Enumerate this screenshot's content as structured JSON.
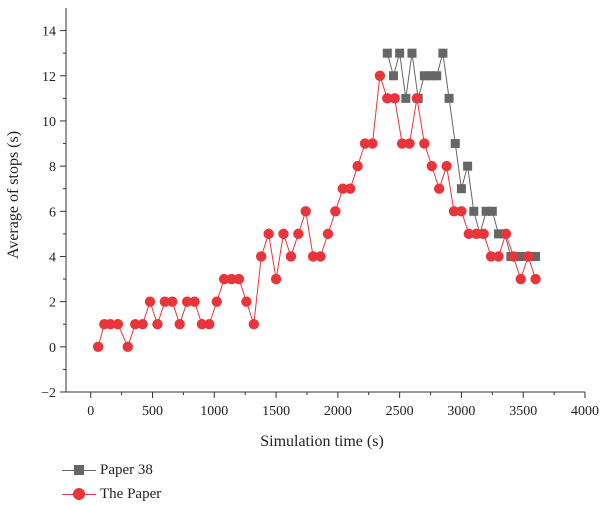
{
  "chart_data": {
    "type": "line",
    "xlabel": "Simulation time (s)",
    "ylabel": "Average of stops (s)",
    "xlim": [
      -200,
      4000
    ],
    "ylim": [
      -2,
      15
    ],
    "xticks": [
      0,
      500,
      1000,
      1500,
      2000,
      2500,
      3000,
      3500,
      4000
    ],
    "yticks": [
      -2,
      0,
      2,
      4,
      6,
      8,
      10,
      12,
      14
    ],
    "legend_position": "bottom-left",
    "series": [
      {
        "name": "Paper 38",
        "color": "#666666",
        "marker": "square",
        "x": [
          2400,
          2450,
          2500,
          2550,
          2600,
          2650,
          2700,
          2750,
          2800,
          2850,
          2900,
          2950,
          3000,
          3050,
          3100,
          3150,
          3200,
          3250,
          3300,
          3350,
          3400,
          3450,
          3500,
          3550,
          3600
        ],
        "y": [
          13,
          12,
          13,
          11,
          13,
          11,
          12,
          12,
          12,
          13,
          11,
          9,
          7,
          8,
          6,
          5,
          6,
          6,
          5,
          5,
          4,
          4,
          4,
          4,
          4
        ]
      },
      {
        "name": "The Paper",
        "color": "#e8353b",
        "marker": "circle",
        "x": [
          60,
          110,
          160,
          220,
          300,
          360,
          420,
          480,
          540,
          600,
          660,
          720,
          780,
          840,
          900,
          960,
          1020,
          1080,
          1140,
          1200,
          1260,
          1320,
          1380,
          1440,
          1500,
          1560,
          1620,
          1680,
          1740,
          1800,
          1860,
          1920,
          1980,
          2040,
          2100,
          2160,
          2220,
          2280,
          2340,
          2400,
          2460,
          2520,
          2580,
          2640,
          2700,
          2760,
          2820,
          2880,
          2940,
          3000,
          3060,
          3120,
          3180,
          3240,
          3300,
          3360,
          3420,
          3480,
          3540,
          3600
        ],
        "y": [
          0,
          1,
          1,
          1,
          0,
          1,
          1,
          2,
          1,
          2,
          2,
          1,
          2,
          2,
          1,
          1,
          2,
          3,
          3,
          3,
          2,
          1,
          4,
          5,
          3,
          5,
          4,
          5,
          6,
          4,
          4,
          5,
          6,
          7,
          7,
          8,
          9,
          9,
          12,
          11,
          11,
          9,
          9,
          11,
          9,
          8,
          7,
          8,
          6,
          6,
          5,
          5,
          5,
          4,
          4,
          5,
          4,
          3,
          4,
          3
        ]
      }
    ]
  }
}
